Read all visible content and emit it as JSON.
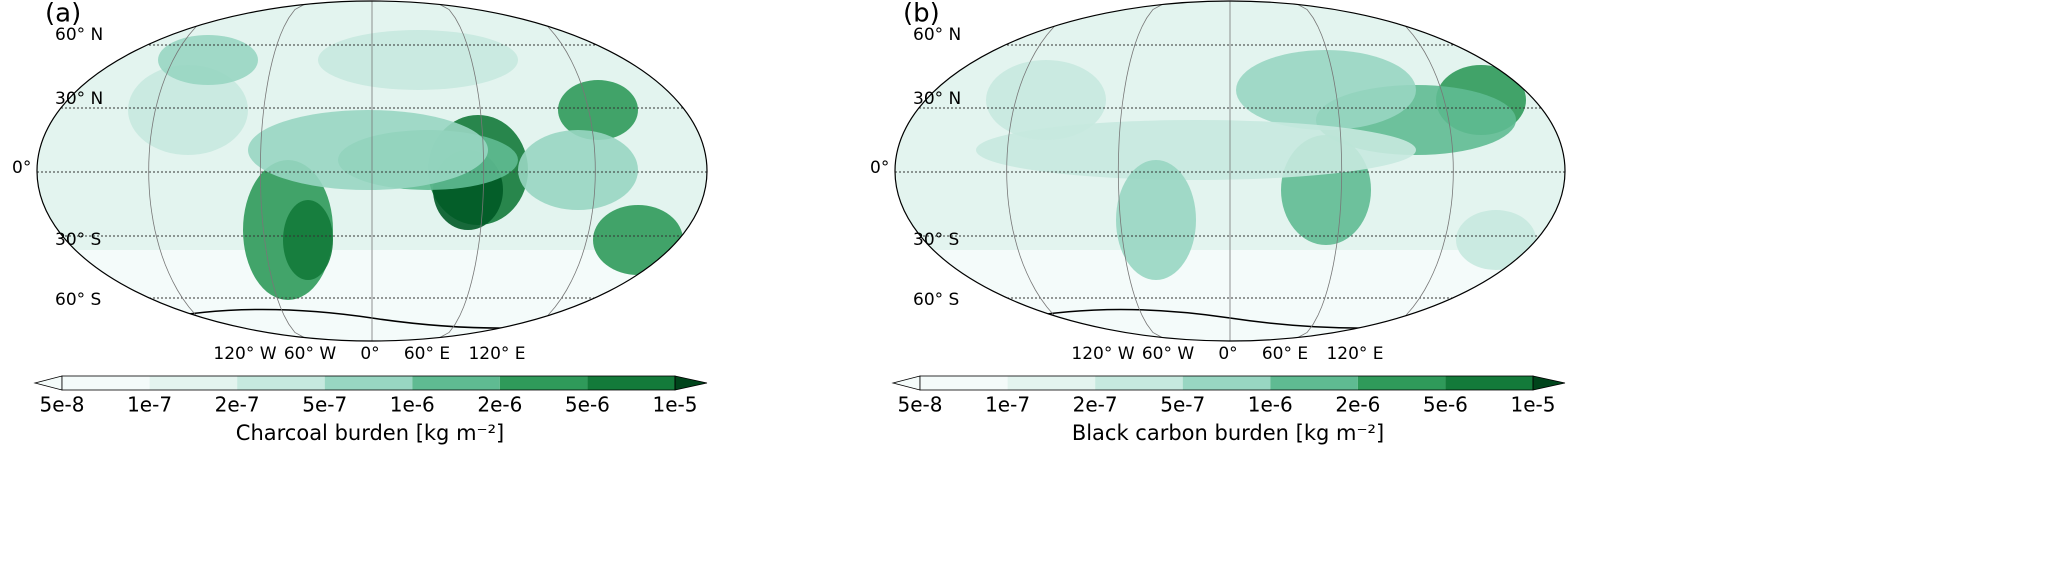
{
  "panels": [
    {
      "label": "(a)",
      "colorbar_label": "Charcoal burden [kg m⁻²]"
    },
    {
      "label": "(b)",
      "colorbar_label": "Black carbon burden [kg m⁻²]"
    }
  ],
  "lat_labels": [
    "60° N",
    "30° N",
    "0°",
    "30° S",
    "60° S"
  ],
  "lon_labels": [
    "120° W",
    "60° W",
    "0°",
    "60° E",
    "120° E"
  ],
  "colorbar_ticks": [
    "5e-8",
    "1e-7",
    "2e-7",
    "5e-7",
    "1e-6",
    "2e-6",
    "5e-6",
    "1e-5"
  ]
}
